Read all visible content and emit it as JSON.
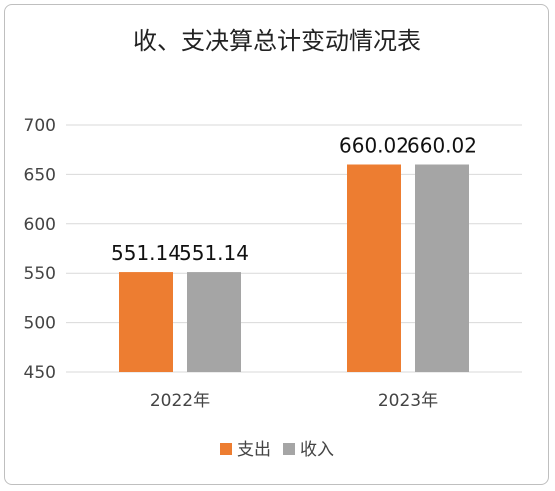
{
  "chart_data": {
    "type": "bar",
    "title": "收、支决算总计变动情况表",
    "categories": [
      "2022年",
      "2023年"
    ],
    "series": [
      {
        "name": "支出",
        "color": "#ed7d31",
        "values": [
          551.14,
          660.02
        ]
      },
      {
        "name": "收入",
        "color": "#a5a5a5",
        "values": [
          551.14,
          660.02
        ]
      }
    ],
    "data_labels": [
      [
        "551.14",
        "660.02"
      ],
      [
        "551.14",
        "660.02"
      ]
    ],
    "yticks": [
      "450",
      "500",
      "550",
      "600",
      "650",
      "700"
    ],
    "ylim": [
      450,
      700
    ],
    "xlabel": "",
    "ylabel": "",
    "grid": true,
    "legend_position": "bottom"
  }
}
